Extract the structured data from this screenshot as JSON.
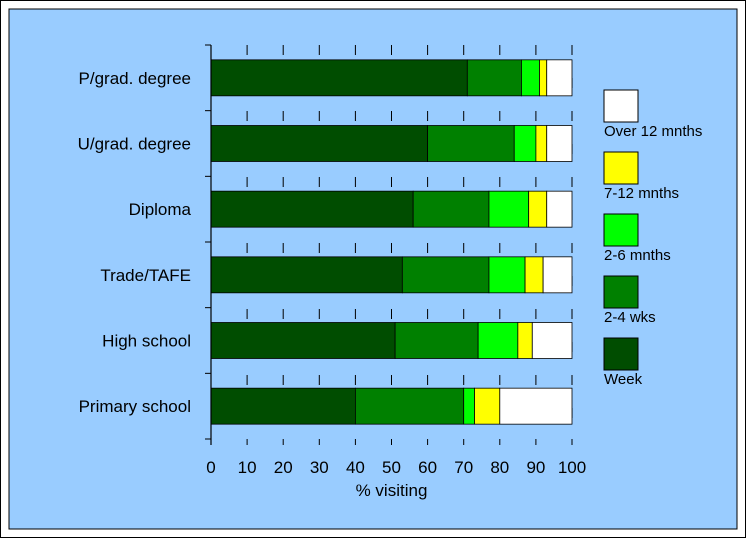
{
  "chart_data": {
    "type": "bar",
    "orientation": "horizontal",
    "stacked": true,
    "title": "",
    "xlabel": "% visiting",
    "ylabel": "",
    "xlim": [
      0,
      100
    ],
    "xticks": [
      0,
      10,
      20,
      30,
      40,
      50,
      60,
      70,
      80,
      90,
      100
    ],
    "grid": "vertical dashed",
    "legend_position": "right",
    "categories": [
      "P/grad. degree",
      "U/grad. degree",
      "Diploma",
      "Trade/TAFE",
      "High school",
      "Primary school"
    ],
    "series": [
      {
        "name": "Week",
        "color": "#004D00",
        "values": [
          71,
          60,
          56,
          53,
          51,
          40
        ]
      },
      {
        "name": "2-4 wks",
        "color": "#008000",
        "values": [
          15,
          24,
          21,
          24,
          23,
          30
        ]
      },
      {
        "name": "2-6 mnths",
        "color": "#00FF00",
        "values": [
          5,
          6,
          11,
          10,
          11,
          3
        ]
      },
      {
        "name": "7-12 mnths",
        "color": "#FFFF00",
        "values": [
          2,
          3,
          5,
          5,
          4,
          7
        ]
      },
      {
        "name": "Over 12 mnths",
        "color": "#FFFFFF",
        "values": [
          7,
          7,
          7,
          8,
          11,
          20
        ]
      }
    ],
    "legend_order": [
      "Over 12 mnths",
      "7-12 mnths",
      "2-6 mnths",
      "2-4 wks",
      "Week"
    ],
    "plot_background": "#99CCFF"
  }
}
